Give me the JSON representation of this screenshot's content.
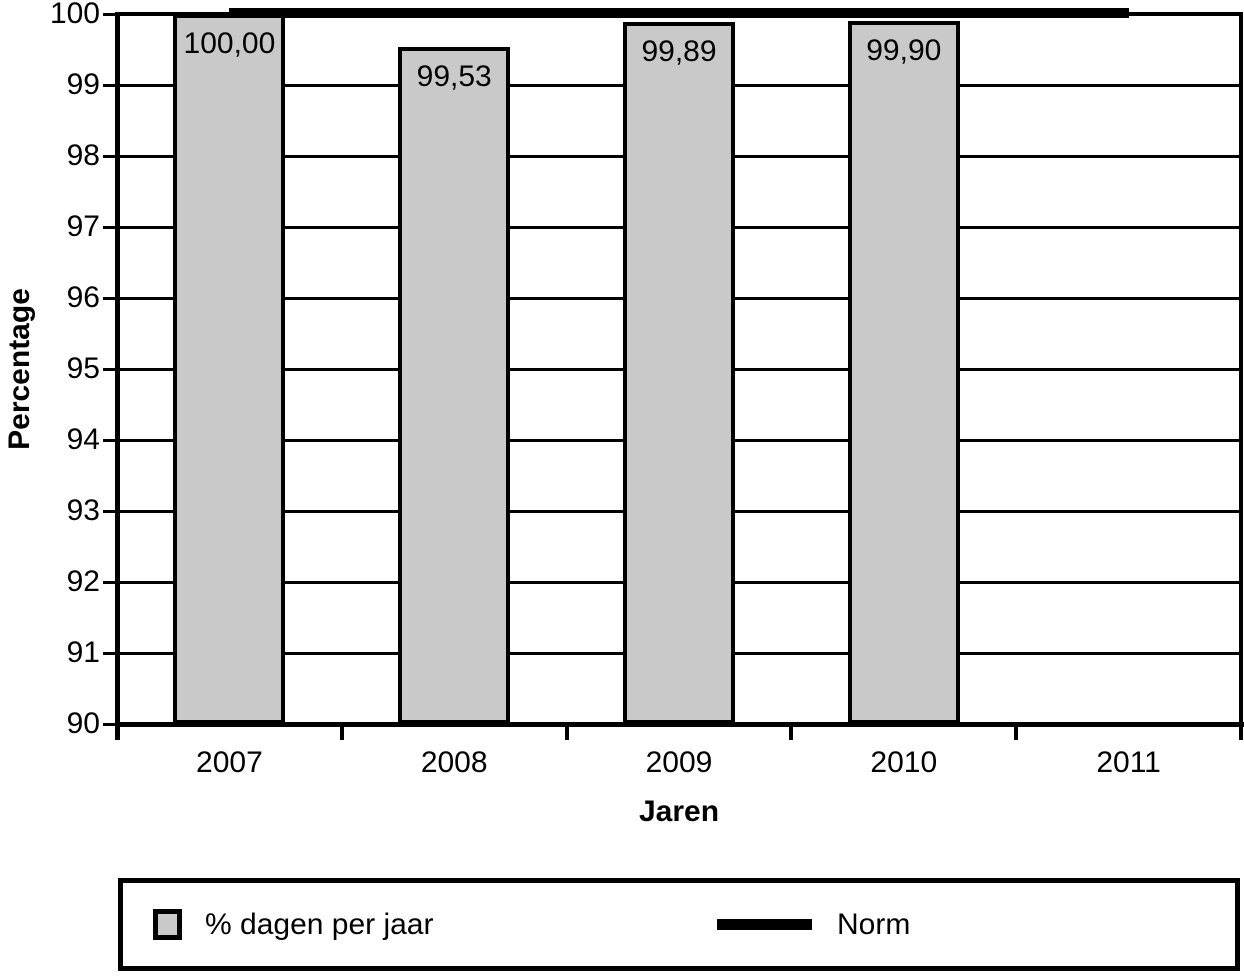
{
  "chart_data": {
    "type": "bar",
    "title": "",
    "categories": [
      "2007",
      "2008",
      "2009",
      "2010",
      "2011"
    ],
    "series": [
      {
        "name": "% dagen per jaar",
        "type": "bar",
        "values": [
          100.0,
          99.53,
          99.89,
          99.9,
          null
        ],
        "value_labels": [
          "100,00",
          "99,53",
          "99,89",
          "99,90",
          null
        ],
        "fill": "#c9c9c9",
        "border": "#000000"
      },
      {
        "name": "Norm",
        "type": "line",
        "values": [
          100,
          100,
          100,
          100,
          100
        ],
        "color": "#000000",
        "thickness": 10
      }
    ],
    "xlabel": "Jaren",
    "ylabel": "Percentage",
    "ylim": [
      90,
      100
    ],
    "ytick_step": 1,
    "ytick_labels": [
      "100",
      "99",
      "98",
      "97",
      "96",
      "95",
      "94",
      "93",
      "92",
      "91",
      "90"
    ],
    "grid": "horizontal",
    "legend_position": "bottom",
    "axis_color": "#000000",
    "background": "#ffffff"
  }
}
